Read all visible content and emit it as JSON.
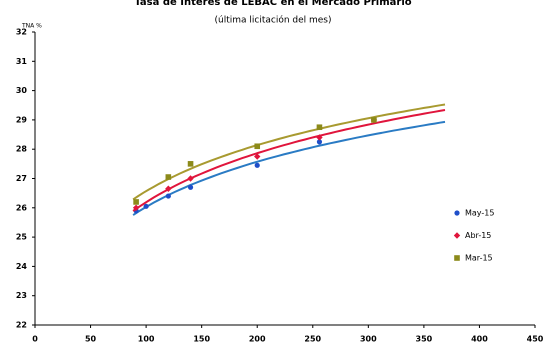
{
  "chart_data": {
    "type": "scatter",
    "title": "Tasa de Interes de LEBAC en el Mercado Primario",
    "subtitle": "(última licitación del mes)",
    "y_label": "TNA %",
    "xlim": [
      0,
      450
    ],
    "xticks": [
      0,
      50,
      100,
      150,
      200,
      250,
      300,
      350,
      400,
      450
    ],
    "ylim": [
      22,
      32
    ],
    "yticks": [
      22,
      23,
      24,
      25,
      26,
      27,
      28,
      29,
      30,
      31,
      32
    ],
    "trendline": "logarithmic",
    "legend": "right",
    "series": [
      {
        "name": "May-15",
        "color": "#1f4fc9",
        "line_color": "#2a7bc4",
        "marker": "circle",
        "x": [
          91,
          100,
          120,
          140,
          200,
          256
        ],
        "values": [
          25.9,
          26.05,
          26.4,
          26.7,
          27.45,
          28.25
        ]
      },
      {
        "name": "Abr-15",
        "color": "#e0153c",
        "line_color": "#e0153c",
        "marker": "diamond",
        "x": [
          91,
          120,
          140,
          200,
          256,
          305
        ],
        "values": [
          26.0,
          26.65,
          27.0,
          27.75,
          28.4,
          29.0
        ]
      },
      {
        "name": "Mar-15",
        "color": "#8c8a1a",
        "line_color": "#a89a30",
        "marker": "square",
        "x": [
          91,
          120,
          140,
          200,
          256,
          305
        ],
        "values": [
          26.2,
          27.05,
          27.5,
          28.1,
          28.75,
          29.0
        ]
      }
    ]
  }
}
